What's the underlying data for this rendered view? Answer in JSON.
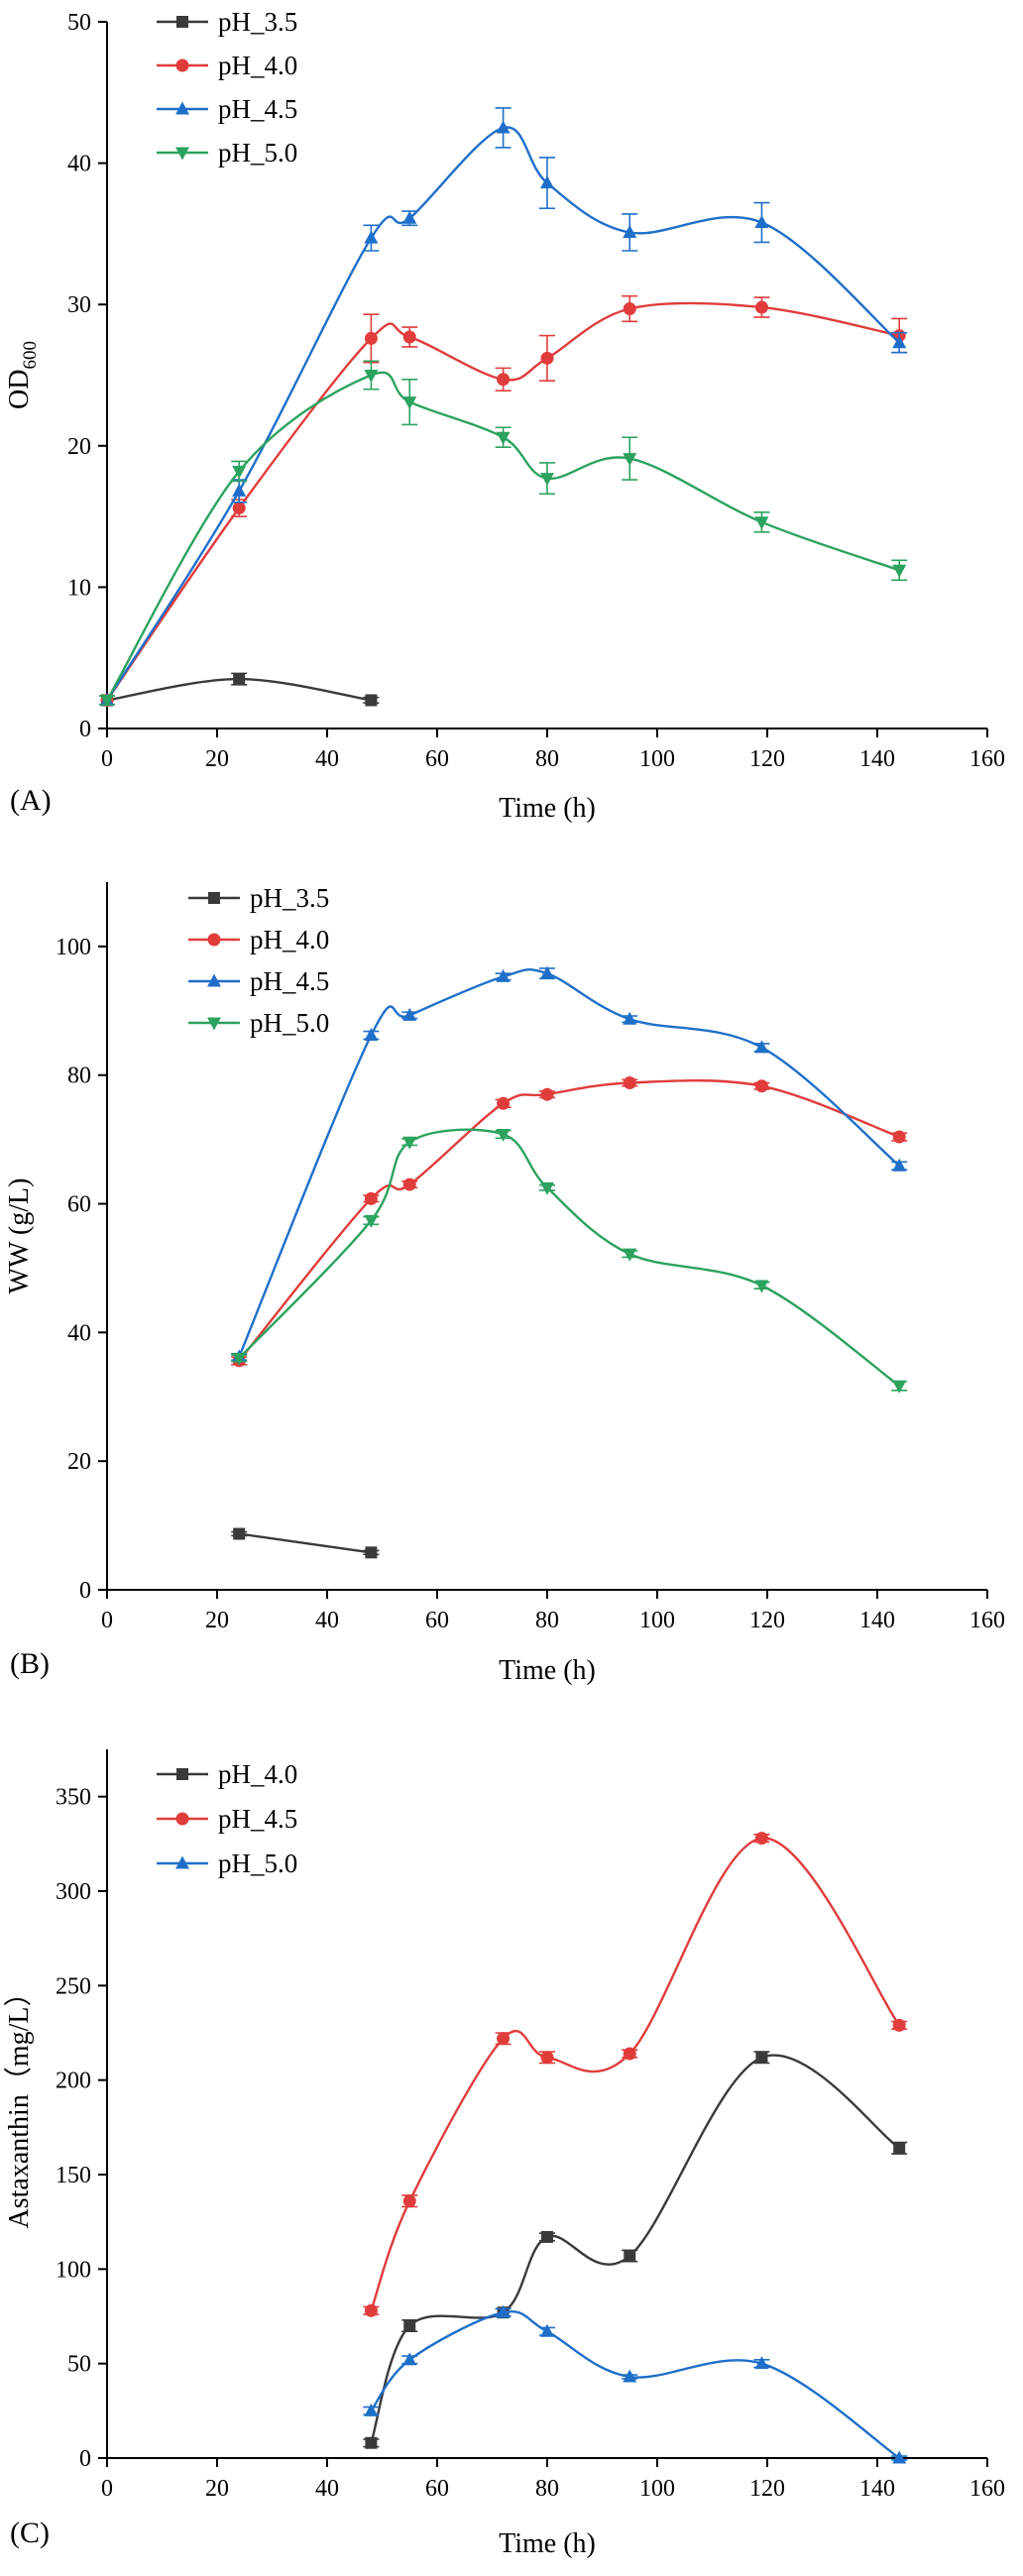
{
  "colors": {
    "black": "#3a3a3a",
    "red": "#e03c3c",
    "blue": "#1f6fc9",
    "green": "#2ca25f"
  },
  "chart_data": [
    {
      "type": "line",
      "panel": "(A)",
      "xlabel": "Time (h)",
      "ylabel": "OD",
      "ylabel_sub": "600",
      "xlim": [
        0,
        160
      ],
      "ylim": [
        0,
        50
      ],
      "xticks": [
        0,
        20,
        40,
        60,
        80,
        100,
        120,
        140,
        160
      ],
      "yticks": [
        0,
        10,
        20,
        30,
        40,
        50
      ],
      "legend": "top-left",
      "series": [
        {
          "name": "pH_3.5",
          "color": "#3a3a3a",
          "marker": "square",
          "x": [
            0,
            24,
            48
          ],
          "y": [
            2.0,
            3.5,
            2.0
          ],
          "err": [
            0.3,
            0.4,
            0.2
          ]
        },
        {
          "name": "pH_4.0",
          "color": "#e03c3c",
          "marker": "circle",
          "x": [
            0,
            24,
            48,
            55,
            72,
            80,
            95,
            119,
            144
          ],
          "y": [
            2.0,
            15.6,
            27.6,
            27.7,
            24.7,
            26.2,
            29.7,
            29.8,
            27.8
          ],
          "err": [
            0.3,
            0.6,
            1.7,
            0.7,
            0.8,
            1.6,
            0.9,
            0.7,
            1.2
          ]
        },
        {
          "name": "pH_4.5",
          "color": "#1f6fc9",
          "marker": "triangle-up",
          "x": [
            0,
            24,
            48,
            55,
            72,
            80,
            95,
            119,
            144
          ],
          "y": [
            2.0,
            16.8,
            34.7,
            36.1,
            42.5,
            38.6,
            35.1,
            35.8,
            27.3
          ],
          "err": [
            0.3,
            0.8,
            0.9,
            0.5,
            1.4,
            1.8,
            1.3,
            1.4,
            0.7
          ]
        },
        {
          "name": "pH_5.0",
          "color": "#2ca25f",
          "marker": "triangle-down",
          "x": [
            0,
            24,
            48,
            55,
            72,
            80,
            95,
            119,
            144
          ],
          "y": [
            2.0,
            18.2,
            25.0,
            23.1,
            20.6,
            17.7,
            19.1,
            14.6,
            11.2
          ],
          "err": [
            0.3,
            0.7,
            1.0,
            1.6,
            0.7,
            1.1,
            1.5,
            0.7,
            0.7
          ]
        }
      ]
    },
    {
      "type": "line",
      "panel": "(B)",
      "xlabel": "Time (h)",
      "ylabel": "WW (g/L)",
      "ylabel_sub": "",
      "xlim": [
        0,
        160
      ],
      "ylim": [
        0,
        110
      ],
      "xticks": [
        0,
        20,
        40,
        60,
        80,
        100,
        120,
        140,
        160
      ],
      "yticks": [
        0,
        20,
        40,
        60,
        80,
        100
      ],
      "legend": "top-left",
      "series": [
        {
          "name": "pH_3.5",
          "color": "#3a3a3a",
          "marker": "square",
          "x": [
            24,
            48
          ],
          "y": [
            8.7,
            5.8
          ],
          "err": [
            0.3,
            0.3
          ]
        },
        {
          "name": "pH_4.0",
          "color": "#e03c3c",
          "marker": "circle",
          "x": [
            24,
            48,
            55,
            72,
            80,
            95,
            119,
            144
          ],
          "y": [
            35.6,
            60.8,
            63.0,
            75.6,
            77.0,
            78.8,
            78.3,
            70.4
          ],
          "err": [
            0.6,
            0.5,
            0.5,
            0.6,
            0.5,
            0.5,
            0.5,
            0.6
          ]
        },
        {
          "name": "pH_4.5",
          "color": "#1f6fc9",
          "marker": "triangle-up",
          "x": [
            24,
            48,
            55,
            72,
            80,
            95,
            119,
            144
          ],
          "y": [
            36.2,
            86.2,
            89.3,
            95.3,
            95.8,
            88.7,
            84.3,
            65.9
          ],
          "err": [
            0.5,
            0.6,
            0.5,
            0.5,
            0.8,
            0.5,
            0.6,
            0.6
          ]
        },
        {
          "name": "pH_5.0",
          "color": "#2ca25f",
          "marker": "triangle-down",
          "x": [
            24,
            48,
            55,
            72,
            80,
            95,
            119,
            144
          ],
          "y": [
            36.0,
            57.4,
            69.6,
            70.8,
            62.5,
            52.2,
            47.3,
            31.7
          ],
          "err": [
            0.5,
            0.6,
            0.5,
            0.6,
            0.4,
            0.5,
            0.5,
            0.7
          ]
        }
      ]
    },
    {
      "type": "line",
      "panel": "(C)",
      "xlabel": "Time (h)",
      "ylabel": "Astaxanthin（mg/L）",
      "ylabel_sub": "",
      "xlim": [
        0,
        160
      ],
      "ylim": [
        0,
        375
      ],
      "xticks": [
        0,
        20,
        40,
        60,
        80,
        100,
        120,
        140,
        160
      ],
      "yticks": [
        0,
        50,
        100,
        150,
        200,
        250,
        300,
        350
      ],
      "legend": "top-left",
      "series": [
        {
          "name": "pH_4.0",
          "color": "#3a3a3a",
          "marker": "square",
          "x": [
            48,
            55,
            72,
            80,
            95,
            119,
            144
          ],
          "y": [
            8,
            70,
            77,
            117,
            107,
            212,
            164
          ],
          "err": [
            2,
            3,
            2,
            2,
            3,
            3,
            3
          ]
        },
        {
          "name": "pH_4.5",
          "color": "#e03c3c",
          "marker": "circle",
          "x": [
            48,
            55,
            72,
            80,
            95,
            119,
            144
          ],
          "y": [
            78,
            136,
            222,
            212,
            214,
            328,
            229
          ],
          "err": [
            2,
            3,
            3,
            3,
            2,
            2,
            2
          ]
        },
        {
          "name": "pH_5.0",
          "color": "#1f6fc9",
          "marker": "triangle-up",
          "x": [
            48,
            55,
            72,
            80,
            95,
            119,
            144
          ],
          "y": [
            25,
            52,
            77,
            67,
            43,
            50,
            0
          ],
          "err": [
            2,
            2,
            2,
            2,
            1,
            2,
            1
          ]
        }
      ]
    }
  ]
}
